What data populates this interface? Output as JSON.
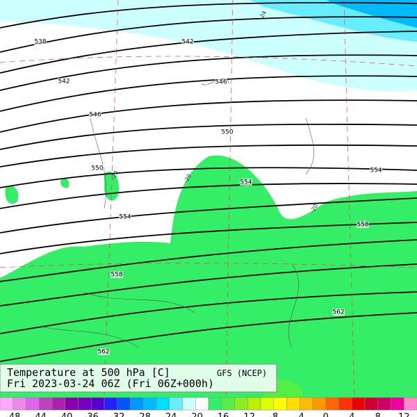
{
  "title": {
    "line1": "Temperature at 500 hPa [C]",
    "model": "GFS (NCEP)",
    "line2": "Fri 2023-03-24 06Z (Fri 06Z+000h)"
  },
  "contour_labels": [
    538,
    542,
    542,
    546,
    546,
    550,
    550,
    554,
    554,
    554,
    558,
    558,
    562,
    562
  ],
  "isotherm_labels": [
    -24,
    -20,
    -20,
    -20
  ],
  "colorbar": {
    "labels": [
      -48,
      -44,
      -40,
      -36,
      -32,
      -28,
      -24,
      -20,
      -16,
      -12,
      -8,
      -4,
      0,
      4,
      8,
      12
    ],
    "colors": [
      "#ffaaff",
      "#ee88ee",
      "#dd66ee",
      "#bb44bb",
      "#aa22aa",
      "#8800aa",
      "#7700bb",
      "#5500cc",
      "#2222ff",
      "#0055ff",
      "#0099ff",
      "#00bbff",
      "#00ddff",
      "#66eeff",
      "#ccffff",
      "#ffffff",
      "#33ee66",
      "#55ee44",
      "#88ee22",
      "#bbee00",
      "#ddff00",
      "#ffff00",
      "#ffdd00",
      "#ffbb00",
      "#ff9900",
      "#ff6600",
      "#ff3300",
      "#ee0000",
      "#cc0033",
      "#cc0066",
      "#ee0099",
      "#ff88cc"
    ]
  }
}
